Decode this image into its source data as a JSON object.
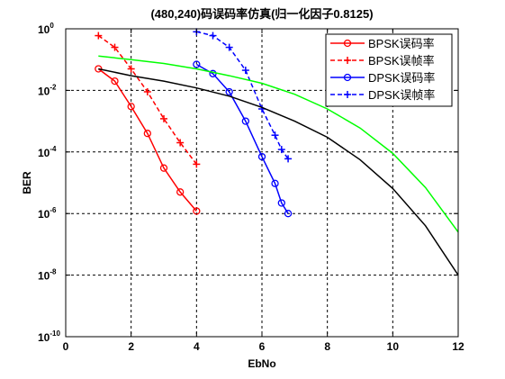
{
  "chart_data": {
    "type": "line",
    "title": "(480,240)码误码率仿真(归一化因子0.8125)",
    "xlabel": "EbNo",
    "ylabel": "BER",
    "xlim": [
      0,
      12
    ],
    "ylim_exp": [
      -10,
      0
    ],
    "y_scale": "log",
    "x_ticks": [
      0,
      2,
      4,
      6,
      8,
      10,
      12
    ],
    "y_tick_exps": [
      -10,
      -8,
      -6,
      -4,
      -2,
      0
    ],
    "grid": true,
    "legend_position": "top-right",
    "series": [
      {
        "name": "BPSK误码率",
        "color": "#ff0000",
        "dash": "solid",
        "marker": "circle",
        "x": [
          1,
          1.5,
          2,
          2.5,
          3,
          3.5,
          4
        ],
        "y": [
          0.05,
          0.02,
          0.003,
          0.0004,
          3e-05,
          5e-06,
          1.2e-06
        ]
      },
      {
        "name": "BPSK误帧率",
        "color": "#ff0000",
        "dash": "dashed",
        "marker": "plus",
        "x": [
          1,
          1.5,
          2,
          2.5,
          3,
          3.5,
          4
        ],
        "y": [
          0.6,
          0.25,
          0.05,
          0.009,
          0.0012,
          0.0002,
          4e-05
        ]
      },
      {
        "name": "DPSK误码率",
        "color": "#0000ff",
        "dash": "solid",
        "marker": "circle",
        "x": [
          4,
          4.5,
          5,
          5.5,
          6,
          6.4,
          6.6,
          6.8
        ],
        "y": [
          0.07,
          0.035,
          0.009,
          0.001,
          7e-05,
          9.5e-06,
          2.2e-06,
          1e-06
        ]
      },
      {
        "name": "DPSK误帧率",
        "color": "#0000ff",
        "dash": "dashed",
        "marker": "plus",
        "x": [
          4,
          4.5,
          5,
          5.5,
          6,
          6.4,
          6.6,
          6.8
        ],
        "y": [
          0.8,
          0.6,
          0.25,
          0.045,
          0.0025,
          0.00035,
          0.00012,
          6e-05
        ]
      },
      {
        "color": "#00ff00",
        "dash": "solid",
        "marker": "none",
        "x": [
          1,
          2,
          3,
          4,
          5,
          6,
          7,
          8,
          9,
          10,
          11,
          12
        ],
        "y": [
          0.13,
          0.1,
          0.075,
          0.05,
          0.03,
          0.017,
          0.0075,
          0.0025,
          0.0006,
          9e-05,
          7e-06,
          2.5e-07
        ]
      },
      {
        "color": "#000000",
        "dash": "solid",
        "marker": "none",
        "x": [
          1,
          2,
          3,
          4,
          5,
          6,
          7,
          8,
          9,
          10,
          11,
          12
        ],
        "y": [
          0.05,
          0.03,
          0.02,
          0.012,
          0.0065,
          0.0028,
          0.001,
          0.0003,
          5.6e-05,
          6.5e-06,
          4e-07,
          1e-08
        ]
      }
    ]
  }
}
